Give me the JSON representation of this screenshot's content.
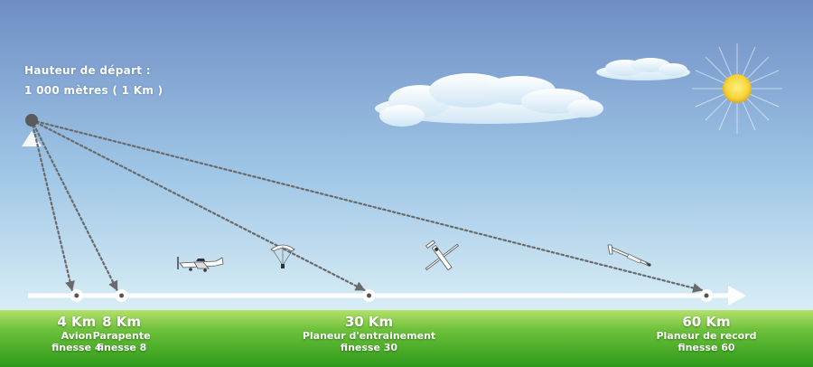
{
  "start": {
    "line1": "Hauteur de départ :",
    "line2": "1 000 mètres ( 1 Km )",
    "height_km": 1
  },
  "scale_max_km": 64,
  "colors": {
    "sky_top": "#6f8dc4",
    "sky_bottom": "#d9eef5",
    "grass_top": "#b4e06a",
    "grass_bottom": "#2e9a1a",
    "arrow": "#6a6a6a",
    "axis": "#ffffff",
    "sun": "#f6d53a"
  },
  "destinations": [
    {
      "distance_km": 4,
      "dist_label": "4 Km",
      "aircraft": "Avion",
      "finesse": "finesse 4",
      "icon": "airplane-icon"
    },
    {
      "distance_km": 8,
      "dist_label": "8 Km",
      "aircraft": "Parapente",
      "finesse": "finesse 8",
      "icon": "paraglider-icon"
    },
    {
      "distance_km": 30,
      "dist_label": "30 Km",
      "aircraft": "Planeur d'entrainement",
      "finesse": "finesse 30",
      "icon": "training-glider-icon"
    },
    {
      "distance_km": 60,
      "dist_label": "60 Km",
      "aircraft": "Planeur de record",
      "finesse": "finesse 60",
      "icon": "record-glider-icon"
    }
  ]
}
